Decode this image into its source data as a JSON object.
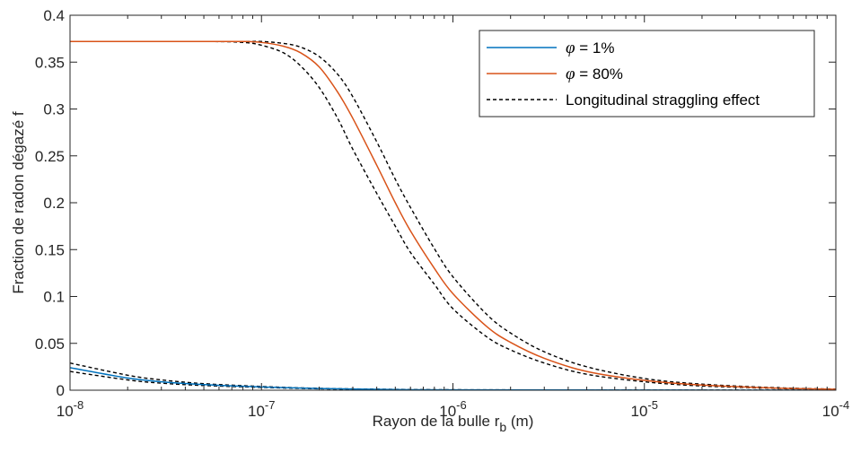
{
  "chart_data": {
    "type": "line",
    "xscale": "log",
    "xlim": [
      1e-08,
      0.0001
    ],
    "ylim": [
      0,
      0.4
    ],
    "xlabel": "Rayon de la bulle r",
    "xlabel_subscript": "b",
    "xlabel_unit": "(m)",
    "ylabel": "Fraction de radon dégazé f",
    "x_ticks": [
      {
        "value": 1e-08,
        "base": "10",
        "exp": "-8"
      },
      {
        "value": 1e-07,
        "base": "10",
        "exp": "-7"
      },
      {
        "value": 1e-06,
        "base": "10",
        "exp": "-6"
      },
      {
        "value": 1e-05,
        "base": "10",
        "exp": "-5"
      },
      {
        "value": 0.0001,
        "base": "10",
        "exp": "-4"
      }
    ],
    "y_ticks": [
      {
        "value": 0,
        "label": "0"
      },
      {
        "value": 0.05,
        "label": "0.05"
      },
      {
        "value": 0.1,
        "label": "0.1"
      },
      {
        "value": 0.15,
        "label": "0.15"
      },
      {
        "value": 0.2,
        "label": "0.2"
      },
      {
        "value": 0.25,
        "label": "0.25"
      },
      {
        "value": 0.3,
        "label": "0.3"
      },
      {
        "value": 0.35,
        "label": "0.35"
      },
      {
        "value": 0.4,
        "label": "0.4"
      }
    ],
    "grid": false,
    "legend_position": "top-right",
    "legend": [
      {
        "symbol": "φ",
        "text": " = 1%",
        "color": "#0072BD",
        "style": "solid"
      },
      {
        "symbol": "φ",
        "text": " = 80%",
        "color": "#D95319",
        "style": "solid"
      },
      {
        "symbol": "",
        "text": "Longitudinal straggling effect",
        "color": "#000000",
        "style": "dashed"
      }
    ],
    "series": [
      {
        "name": "φ = 1%",
        "color": "#0072BD",
        "style": "solid",
        "x": [
          1e-08,
          2e-08,
          3e-08,
          5e-08,
          1e-07,
          2e-07,
          5e-07,
          1e-06,
          1e-05,
          0.0001
        ],
        "y": [
          0.024,
          0.013,
          0.009,
          0.006,
          0.0035,
          0.0018,
          0.0007,
          0.0004,
          0.0001,
          0.0
        ]
      },
      {
        "name": "φ = 1% straggling upper",
        "color": "#000000",
        "style": "dashed",
        "x": [
          1e-08,
          2e-08,
          3e-08,
          5e-08,
          1e-07,
          2e-07,
          5e-07,
          1e-06,
          1e-05,
          0.0001
        ],
        "y": [
          0.029,
          0.016,
          0.011,
          0.007,
          0.004,
          0.002,
          0.0009,
          0.0005,
          0.0001,
          0.0
        ]
      },
      {
        "name": "φ = 1% straggling lower",
        "color": "#000000",
        "style": "dashed",
        "x": [
          1e-08,
          2e-08,
          3e-08,
          5e-08,
          1e-07,
          2e-07,
          5e-07,
          1e-06,
          1e-05,
          0.0001
        ],
        "y": [
          0.02,
          0.011,
          0.0075,
          0.005,
          0.003,
          0.0015,
          0.0006,
          0.0003,
          0.0001,
          0.0
        ]
      },
      {
        "name": "φ = 80%",
        "color": "#D95319",
        "style": "solid",
        "x": [
          1e-08,
          5e-08,
          8e-08,
          1e-07,
          1.3e-07,
          1.6e-07,
          2e-07,
          2.5e-07,
          3e-07,
          4e-07,
          5e-07,
          6e-07,
          8e-07,
          1e-06,
          1.5e-06,
          2e-06,
          3e-06,
          5e-06,
          1e-05,
          2e-05,
          5e-05,
          0.0001
        ],
        "y": [
          0.372,
          0.372,
          0.372,
          0.371,
          0.367,
          0.36,
          0.345,
          0.318,
          0.29,
          0.24,
          0.2,
          0.17,
          0.13,
          0.103,
          0.068,
          0.051,
          0.034,
          0.02,
          0.0105,
          0.0055,
          0.0022,
          0.001
        ]
      },
      {
        "name": "φ = 80% straggling right",
        "color": "#000000",
        "style": "dashed",
        "x": [
          1e-08,
          5e-08,
          8e-08,
          1e-07,
          1.3e-07,
          1.6e-07,
          2e-07,
          2.5e-07,
          3e-07,
          4e-07,
          5e-07,
          6e-07,
          8e-07,
          1e-06,
          1.5e-06,
          2e-06,
          3e-06,
          5e-06,
          1e-05,
          2e-05,
          5e-05,
          0.0001
        ],
        "y": [
          0.372,
          0.372,
          0.372,
          0.372,
          0.37,
          0.366,
          0.356,
          0.337,
          0.313,
          0.265,
          0.225,
          0.195,
          0.151,
          0.121,
          0.081,
          0.061,
          0.041,
          0.025,
          0.0125,
          0.0065,
          0.0026,
          0.0012
        ]
      },
      {
        "name": "φ = 80% straggling left",
        "color": "#000000",
        "style": "dashed",
        "x": [
          1e-08,
          5e-08,
          8e-08,
          1e-07,
          1.3e-07,
          1.6e-07,
          2e-07,
          2.5e-07,
          3e-07,
          4e-07,
          5e-07,
          6e-07,
          8e-07,
          1e-06,
          1.5e-06,
          2e-06,
          3e-06,
          5e-06,
          1e-05,
          2e-05,
          5e-05,
          0.0001
        ],
        "y": [
          0.372,
          0.372,
          0.371,
          0.368,
          0.36,
          0.346,
          0.323,
          0.29,
          0.257,
          0.21,
          0.175,
          0.147,
          0.113,
          0.087,
          0.057,
          0.043,
          0.029,
          0.017,
          0.009,
          0.0045,
          0.0019,
          0.0008
        ]
      }
    ]
  }
}
